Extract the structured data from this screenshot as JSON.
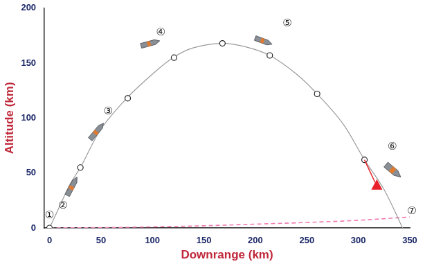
{
  "chart_data": {
    "type": "line",
    "x_label": "Downrange (km)",
    "y_label": "Altitude (km)",
    "xlim": [
      -5,
      350
    ],
    "xticks": [
      0,
      50,
      100,
      150,
      200,
      250,
      300,
      350
    ],
    "ylim": [
      0,
      200
    ],
    "yticks": [
      0,
      50,
      100,
      150,
      200
    ],
    "grid": false,
    "series": [
      {
        "type": "line",
        "color": "#9a9a9a",
        "marker": "none",
        "line_style": "solid",
        "x": [
          0,
          10,
          20,
          30,
          50,
          75,
          100,
          120,
          140,
          168,
          190,
          214,
          240,
          260,
          285,
          306,
          325,
          343
        ],
        "values": [
          0,
          20,
          40,
          55,
          90,
          118,
          140,
          155,
          164,
          168,
          165,
          157,
          140,
          122,
          95,
          62,
          35,
          0
        ]
      },
      {
        "type": "scatter",
        "color": "#222222",
        "marker": "circle",
        "line_style": "none",
        "x": [
          0,
          30,
          76,
          121,
          168,
          214,
          260,
          306
        ],
        "values": [
          0,
          55,
          118,
          155,
          168,
          157,
          122,
          62
        ]
      },
      {
        "type": "line",
        "color": "#f07ab0",
        "marker": "none",
        "line_style": "dashed",
        "x": [
          0,
          50,
          100,
          150,
          200,
          250,
          300,
          350
        ],
        "values": [
          0,
          0.3,
          1,
          2,
          3.5,
          5,
          7,
          10
        ]
      }
    ],
    "annotations": [
      {
        "text": "①",
        "x": 0,
        "y": 11
      },
      {
        "text": "②",
        "x": 13,
        "y": 20
      },
      {
        "text": "③",
        "x": 57,
        "y": 106
      },
      {
        "text": "④",
        "x": 108,
        "y": 178
      },
      {
        "text": "⑤",
        "x": 231,
        "y": 186
      },
      {
        "text": "⑥",
        "x": 333,
        "y": 74
      },
      {
        "text": "⑦",
        "x": 352,
        "y": 15
      }
    ],
    "arrow": {
      "from": [
        306,
        62
      ],
      "to": [
        318,
        38
      ],
      "color": "#e8202a"
    }
  }
}
